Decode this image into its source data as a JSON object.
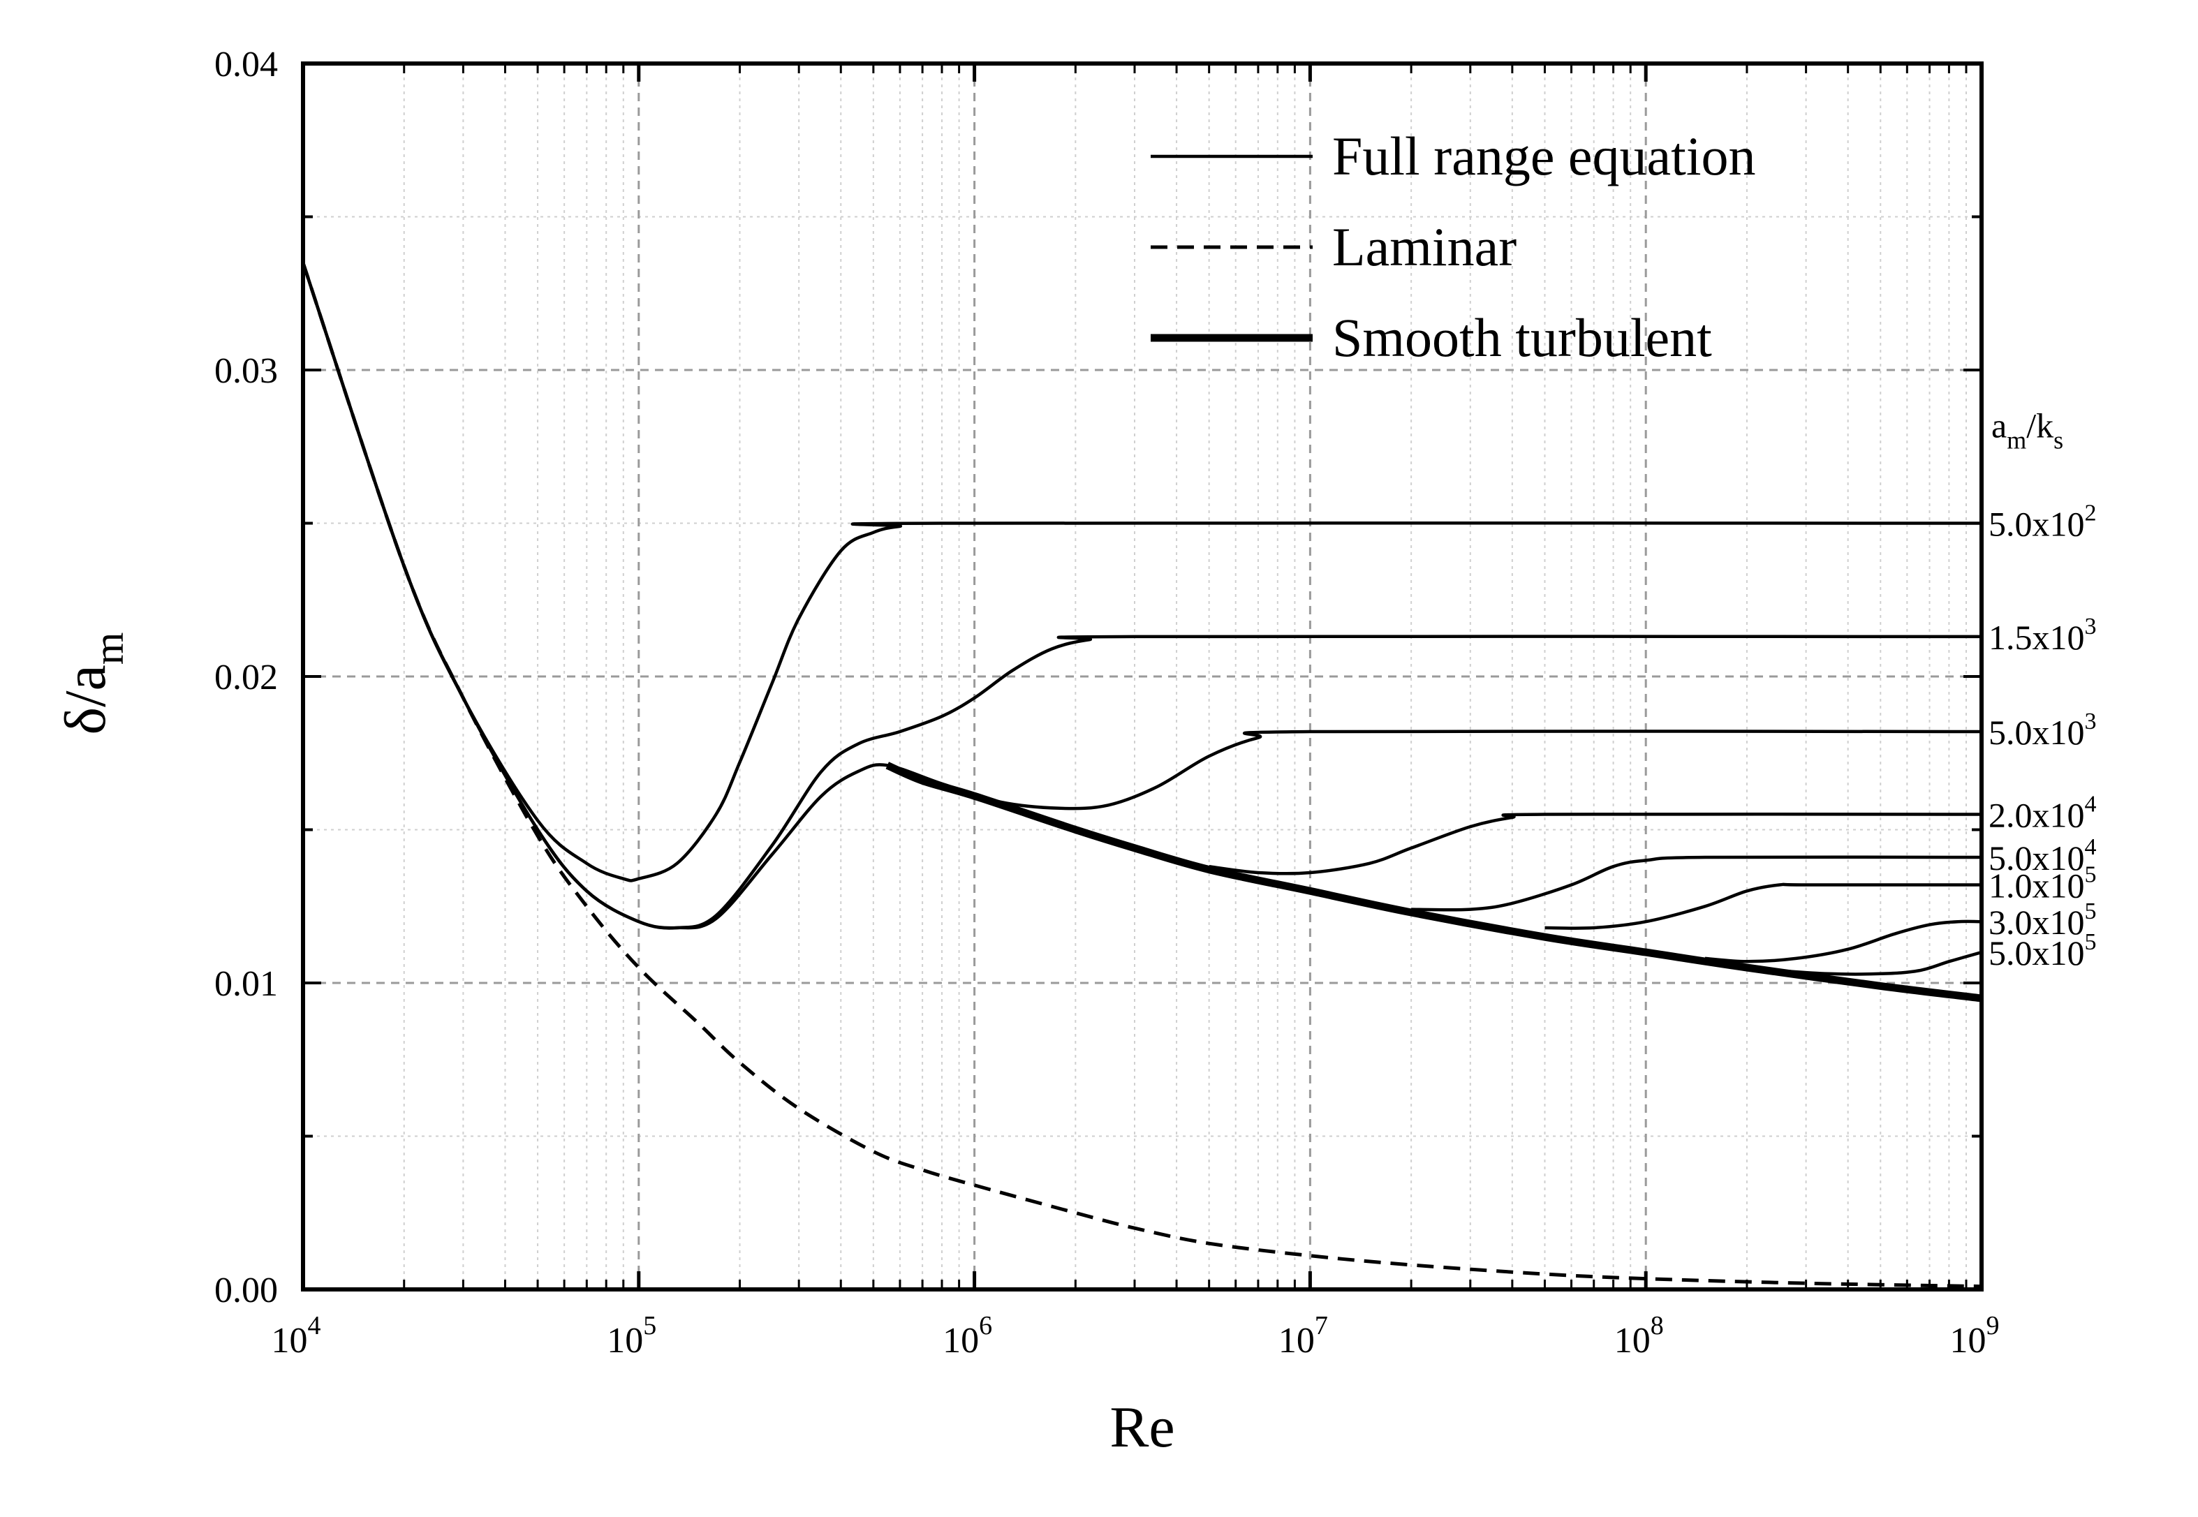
{
  "chart_data": {
    "type": "line",
    "xlabel": "Re",
    "ylabel": "δ/a_m",
    "ylabel_parts": {
      "main": "δ/a",
      "sub": "m"
    },
    "x_scale": "log",
    "xlim": [
      10000,
      1000000000
    ],
    "ylim": [
      0.0,
      0.04
    ],
    "grid": true,
    "x_ticks": [
      {
        "value": 10000,
        "base": "10",
        "exp": "4"
      },
      {
        "value": 100000,
        "base": "10",
        "exp": "5"
      },
      {
        "value": 1000000,
        "base": "10",
        "exp": "6"
      },
      {
        "value": 10000000,
        "base": "10",
        "exp": "7"
      },
      {
        "value": 100000000,
        "base": "10",
        "exp": "8"
      },
      {
        "value": 1000000000,
        "base": "10",
        "exp": "9"
      }
    ],
    "y_ticks": [
      {
        "value": 0.0,
        "label": "0.00"
      },
      {
        "value": 0.01,
        "label": "0.01"
      },
      {
        "value": 0.02,
        "label": "0.02"
      },
      {
        "value": 0.03,
        "label": "0.03"
      },
      {
        "value": 0.04,
        "label": "0.04"
      }
    ],
    "legend": {
      "position": "top-right",
      "entries": [
        {
          "label": "Full range equation",
          "style": "thin-solid"
        },
        {
          "label": "Laminar",
          "style": "dashed"
        },
        {
          "label": "Smooth turbulent",
          "style": "thick-solid"
        }
      ]
    },
    "curve_label_header": {
      "main": "a",
      "sub1": "m",
      "mid": "/k",
      "sub2": "s"
    },
    "series": [
      {
        "name": "Laminar",
        "style": "dashed",
        "points": [
          [
            10000,
            0.0335
          ],
          [
            20000,
            0.0236
          ],
          [
            30000,
            0.0193
          ],
          [
            50000,
            0.0148
          ],
          [
            70000,
            0.0125
          ],
          [
            100000,
            0.0105
          ],
          [
            150000,
            0.0087
          ],
          [
            200000,
            0.0074
          ],
          [
            300000,
            0.0059
          ],
          [
            500000,
            0.0045
          ],
          [
            700000,
            0.0039
          ],
          [
            1000000,
            0.0034
          ],
          [
            2000000,
            0.0025
          ],
          [
            3000000,
            0.002
          ],
          [
            5000000,
            0.0015
          ],
          [
            10000000,
            0.0011
          ],
          [
            20000000,
            0.0008
          ],
          [
            50000000,
            0.0005
          ],
          [
            100000000,
            0.00035
          ],
          [
            300000000,
            0.0002
          ],
          [
            1000000000,
            0.0001
          ]
        ]
      },
      {
        "name": "Smooth turbulent",
        "style": "thick-solid",
        "points": [
          [
            550000,
            0.0171
          ],
          [
            700000,
            0.0166
          ],
          [
            1000000,
            0.0161
          ],
          [
            2000000,
            0.015
          ],
          [
            3000000,
            0.0144
          ],
          [
            5000000,
            0.0137
          ],
          [
            10000000,
            0.013
          ],
          [
            20000000,
            0.0123
          ],
          [
            50000000,
            0.0115
          ],
          [
            100000000,
            0.011
          ],
          [
            200000000,
            0.0105
          ],
          [
            500000000,
            0.0099
          ],
          [
            1000000000,
            0.0095
          ]
        ]
      },
      {
        "name": "Full range equation",
        "label": "5.0x10",
        "label_exp": "2",
        "style": "thin-solid",
        "points": [
          [
            10000,
            0.0335
          ],
          [
            20000,
            0.0236
          ],
          [
            30000,
            0.0193
          ],
          [
            50000,
            0.0153
          ],
          [
            70000,
            0.0139
          ],
          [
            90000,
            0.0134
          ],
          [
            100000,
            0.0134
          ],
          [
            130000,
            0.0139
          ],
          [
            170000,
            0.0155
          ],
          [
            200000,
            0.0172
          ],
          [
            250000,
            0.0198
          ],
          [
            300000,
            0.0219
          ],
          [
            400000,
            0.0241
          ],
          [
            500000,
            0.0247
          ],
          [
            600000,
            0.0249
          ],
          [
            800000,
            0.025
          ],
          [
            1000000000,
            0.025
          ]
        ]
      },
      {
        "name": "Full range equation",
        "label": "1.5x10",
        "label_exp": "3",
        "style": "thin-solid",
        "points": [
          [
            10000,
            0.0335
          ],
          [
            20000,
            0.0236
          ],
          [
            30000,
            0.0193
          ],
          [
            50000,
            0.015
          ],
          [
            70000,
            0.013
          ],
          [
            100000,
            0.012
          ],
          [
            130000,
            0.0118
          ],
          [
            170000,
            0.0122
          ],
          [
            250000,
            0.0145
          ],
          [
            350000,
            0.0169
          ],
          [
            450000,
            0.0178
          ],
          [
            600000,
            0.0182
          ],
          [
            800000,
            0.0187
          ],
          [
            1000000,
            0.0193
          ],
          [
            1300000,
            0.0202
          ],
          [
            1700000,
            0.0209
          ],
          [
            2200000,
            0.0212
          ],
          [
            3000000,
            0.0213
          ],
          [
            1000000000,
            0.0213
          ]
        ]
      },
      {
        "name": "Full range equation",
        "label": "5.0x10",
        "label_exp": "3",
        "style": "thin-solid",
        "points": [
          [
            10000,
            0.0335
          ],
          [
            20000,
            0.0236
          ],
          [
            30000,
            0.0193
          ],
          [
            50000,
            0.015
          ],
          [
            70000,
            0.013
          ],
          [
            100000,
            0.012
          ],
          [
            130000,
            0.0118
          ],
          [
            170000,
            0.0121
          ],
          [
            250000,
            0.0142
          ],
          [
            350000,
            0.0161
          ],
          [
            450000,
            0.0169
          ],
          [
            550000,
            0.0171
          ],
          [
            800000,
            0.0165
          ],
          [
            1200000,
            0.0159
          ],
          [
            1800000,
            0.0157
          ],
          [
            2500000,
            0.0158
          ],
          [
            3500000,
            0.0164
          ],
          [
            5000000,
            0.0174
          ],
          [
            7000000,
            0.018
          ],
          [
            10000000,
            0.0182
          ],
          [
            1000000000,
            0.0182
          ]
        ]
      },
      {
        "name": "Full range equation",
        "label": "2.0x10",
        "label_exp": "4",
        "style": "thin-solid",
        "points": [
          [
            5000000,
            0.0138
          ],
          [
            7000000,
            0.0136
          ],
          [
            10000000,
            0.0136
          ],
          [
            15000000,
            0.0139
          ],
          [
            20000000,
            0.0144
          ],
          [
            30000000,
            0.0151
          ],
          [
            40000000,
            0.0154
          ],
          [
            50000000,
            0.0155
          ],
          [
            1000000000,
            0.0155
          ]
        ]
      },
      {
        "name": "Full range equation",
        "label": "5.0x10",
        "label_exp": "4",
        "style": "thin-solid",
        "points": [
          [
            20000000,
            0.0124
          ],
          [
            30000000,
            0.0124
          ],
          [
            40000000,
            0.0126
          ],
          [
            60000000,
            0.0132
          ],
          [
            80000000,
            0.0138
          ],
          [
            100000000,
            0.014
          ],
          [
            150000000,
            0.0141
          ],
          [
            1000000000,
            0.0141
          ]
        ]
      },
      {
        "name": "Full range equation",
        "label": "1.0x10",
        "label_exp": "5",
        "style": "thin-solid",
        "points": [
          [
            50000000,
            0.0118
          ],
          [
            70000000,
            0.0118
          ],
          [
            100000000,
            0.012
          ],
          [
            150000000,
            0.0125
          ],
          [
            200000000,
            0.013
          ],
          [
            250000000,
            0.0132
          ],
          [
            300000000,
            0.0132
          ],
          [
            1000000000,
            0.0132
          ]
        ]
      },
      {
        "name": "Full range equation",
        "label": "3.0x10",
        "label_exp": "5",
        "style": "thin-solid",
        "points": [
          [
            150000000,
            0.0108
          ],
          [
            200000000,
            0.0107
          ],
          [
            280000000,
            0.0108
          ],
          [
            400000000,
            0.0111
          ],
          [
            550000000,
            0.0116
          ],
          [
            700000000,
            0.0119
          ],
          [
            850000000,
            0.012
          ],
          [
            1000000000,
            0.012
          ]
        ]
      },
      {
        "name": "Full range equation",
        "label": "5.0x10",
        "label_exp": "5",
        "style": "thin-solid",
        "points": [
          [
            250000000,
            0.0104
          ],
          [
            350000000,
            0.0103
          ],
          [
            500000000,
            0.0103
          ],
          [
            650000000,
            0.0104
          ],
          [
            800000000,
            0.0107
          ],
          [
            1000000000,
            0.011
          ]
        ]
      }
    ]
  }
}
